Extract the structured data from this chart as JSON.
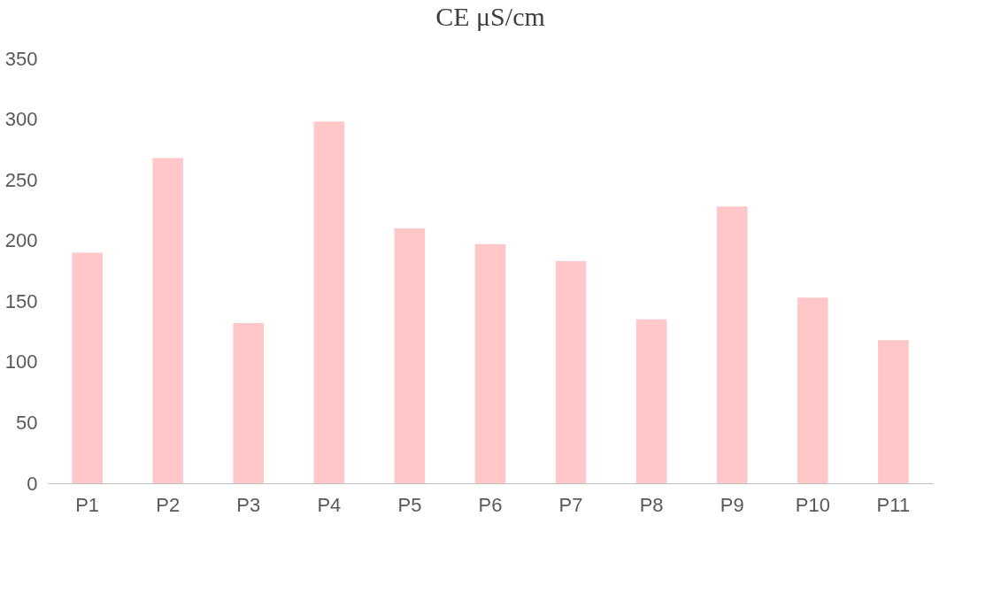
{
  "chart_data": {
    "type": "bar",
    "title": "CE   μS/cm",
    "categories": [
      "P1",
      "P2",
      "P3",
      "P4",
      "P5",
      "P6",
      "P7",
      "P8",
      "P9",
      "P10",
      "P11"
    ],
    "values": [
      190,
      268,
      132,
      298,
      210,
      197,
      183,
      135,
      228,
      153,
      118
    ],
    "color": "#ffc7c7",
    "ylim": [
      0,
      350
    ],
    "yticks": [
      0,
      50,
      100,
      150,
      200,
      250,
      300,
      350
    ],
    "grid": false
  }
}
